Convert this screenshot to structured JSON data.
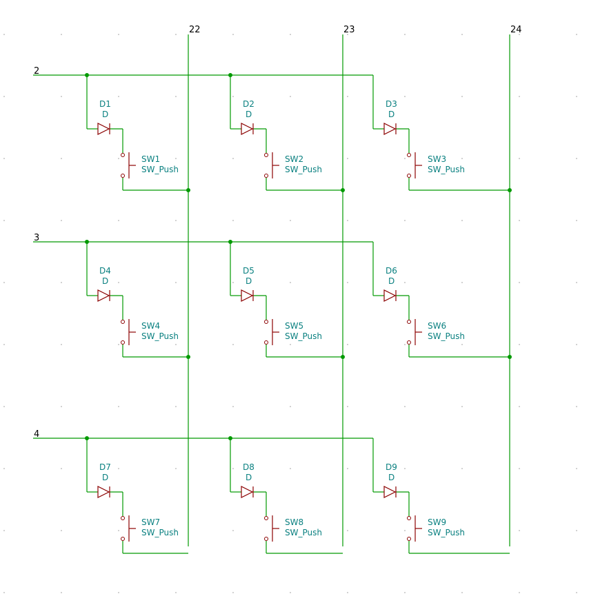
{
  "schematic": {
    "row_nets": [
      "2",
      "3",
      "4"
    ],
    "column_nets": [
      "22",
      "23",
      "24"
    ],
    "components": [
      {
        "diode_ref": "D1",
        "diode_value": "D",
        "switch_ref": "SW1",
        "switch_value": "SW_Push"
      },
      {
        "diode_ref": "D2",
        "diode_value": "D",
        "switch_ref": "SW2",
        "switch_value": "SW_Push"
      },
      {
        "diode_ref": "D3",
        "diode_value": "D",
        "switch_ref": "SW3",
        "switch_value": "SW_Push"
      },
      {
        "diode_ref": "D4",
        "diode_value": "D",
        "switch_ref": "SW4",
        "switch_value": "SW_Push"
      },
      {
        "diode_ref": "D5",
        "diode_value": "D",
        "switch_ref": "SW5",
        "switch_value": "SW_Push"
      },
      {
        "diode_ref": "D6",
        "diode_value": "D",
        "switch_ref": "SW6",
        "switch_value": "SW_Push"
      },
      {
        "diode_ref": "D7",
        "diode_value": "D",
        "switch_ref": "SW7",
        "switch_value": "SW_Push"
      },
      {
        "diode_ref": "D8",
        "diode_value": "D",
        "switch_ref": "SW8",
        "switch_value": "SW_Push"
      },
      {
        "diode_ref": "D9",
        "diode_value": "D",
        "switch_ref": "SW9",
        "switch_value": "SW_Push"
      }
    ],
    "colors": {
      "wire": "#009900",
      "symbol": "#8b0000",
      "reference_text": "#0a8080"
    }
  }
}
